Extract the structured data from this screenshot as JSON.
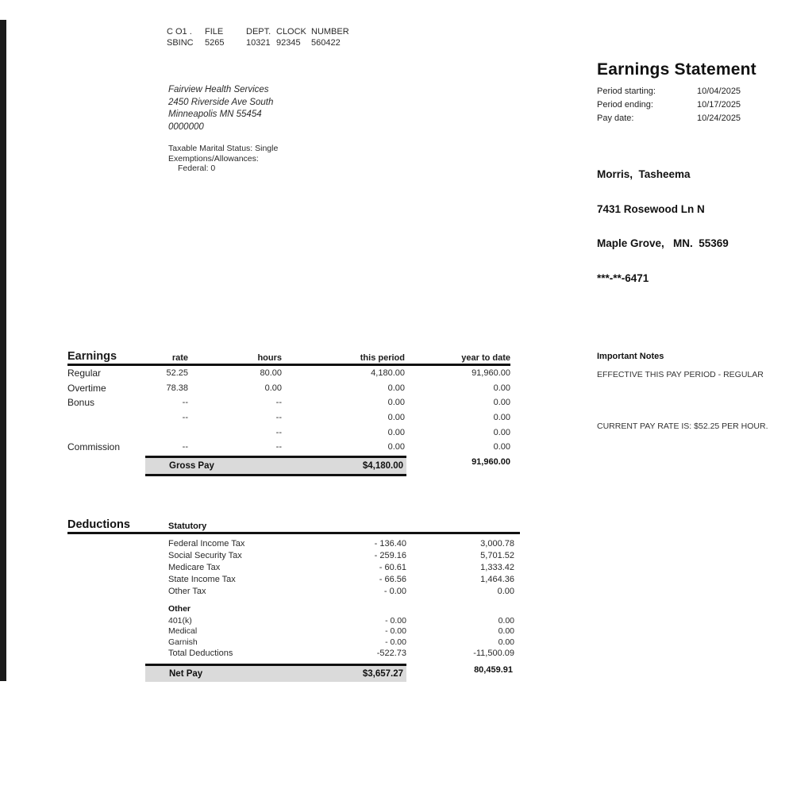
{
  "file_header": {
    "columns": [
      "C O1 .",
      "FILE",
      "DEPT.",
      "CLOCK",
      "NUMBER"
    ],
    "values": [
      "SBINC",
      "5265",
      "10321",
      "92345",
      "560422"
    ]
  },
  "company": {
    "name": "Fairview Health Services",
    "address1": "2450 Riverside Ave South",
    "address2": "Minneapolis MN 55454",
    "code": "0000000",
    "marital_status": "Taxable Marital Status: Single",
    "exemptions": "Exemptions/Allowances:",
    "federal": "Federal: 0"
  },
  "statement": {
    "title": "Earnings Statement",
    "period_starting_label": "Period starting:",
    "period_starting": "10/04/2025",
    "period_ending_label": "Period ending:",
    "period_ending": "10/17/2025",
    "pay_date_label": "Pay date:",
    "pay_date": "10/24/2025"
  },
  "employee": {
    "name": "Morris,  Tasheema",
    "address1": "7431 Rosewood Ln N",
    "address2": "Maple Grove,   MN.  55369",
    "ssn_masked": "***-**-6471"
  },
  "earnings": {
    "title": "Earnings",
    "col_rate": "rate",
    "col_hours": "hours",
    "col_this_period": "this period",
    "col_ytd": "year to date",
    "rows": [
      {
        "label": "Regular",
        "rate": "52.25",
        "hours": "80.00",
        "this_period": "4,180.00",
        "ytd": "91,960.00"
      },
      {
        "label": "Overtime",
        "rate": "78.38",
        "hours": "0.00",
        "this_period": "0.00",
        "ytd": "0.00"
      },
      {
        "label": "Bonus",
        "rate": "--",
        "hours": "--",
        "this_period": "0.00",
        "ytd": "0.00"
      },
      {
        "label": "",
        "rate": "--",
        "hours": "--",
        "this_period": "0.00",
        "ytd": "0.00"
      },
      {
        "label": "",
        "rate": "",
        "hours": "--",
        "this_period": "0.00",
        "ytd": "0.00"
      },
      {
        "label": "Commission",
        "rate": "--",
        "hours": "--",
        "this_period": "0.00",
        "ytd": "0.00"
      }
    ],
    "gross_label": "Gross Pay",
    "gross_this_period": "$4,180.00",
    "gross_ytd": "91,960.00"
  },
  "deductions": {
    "title": "Deductions",
    "statutory_label": "Statutory",
    "statutory_rows": [
      {
        "label": "Federal Income Tax",
        "this_period": "- 136.40",
        "ytd": "3,000.78"
      },
      {
        "label": "Social Security Tax",
        "this_period": "- 259.16",
        "ytd": "5,701.52"
      },
      {
        "label": "Medicare Tax",
        "this_period": "- 60.61",
        "ytd": "1,333.42"
      },
      {
        "label": "State Income Tax",
        "this_period": "- 66.56",
        "ytd": "1,464.36"
      },
      {
        "label": "Other Tax",
        "this_period": "- 0.00",
        "ytd": "0.00"
      }
    ],
    "other_label": "Other",
    "other_rows": [
      {
        "label": "401(k)",
        "this_period": "- 0.00",
        "ytd": "0.00"
      },
      {
        "label": "Medical",
        "this_period": "- 0.00",
        "ytd": "0.00"
      },
      {
        "label": "Garnish",
        "this_period": "- 0.00",
        "ytd": "0.00"
      }
    ],
    "total_label": "Total Deductions",
    "total_this_period": "-522.73",
    "total_ytd": "-11,500.09",
    "net_label": "Net Pay",
    "net_this_period": "$3,657.27",
    "net_ytd": "80,459.91"
  },
  "notes": {
    "title": "Important Notes",
    "line1": "EFFECTIVE THIS PAY PERIOD - REGULAR",
    "line2": "CURRENT PAY RATE IS: $52.25 PER HOUR."
  },
  "colors": {
    "highlight_row_bg": "#dadada",
    "rule": "#111111",
    "scan_bar": "#1b1b1b"
  }
}
